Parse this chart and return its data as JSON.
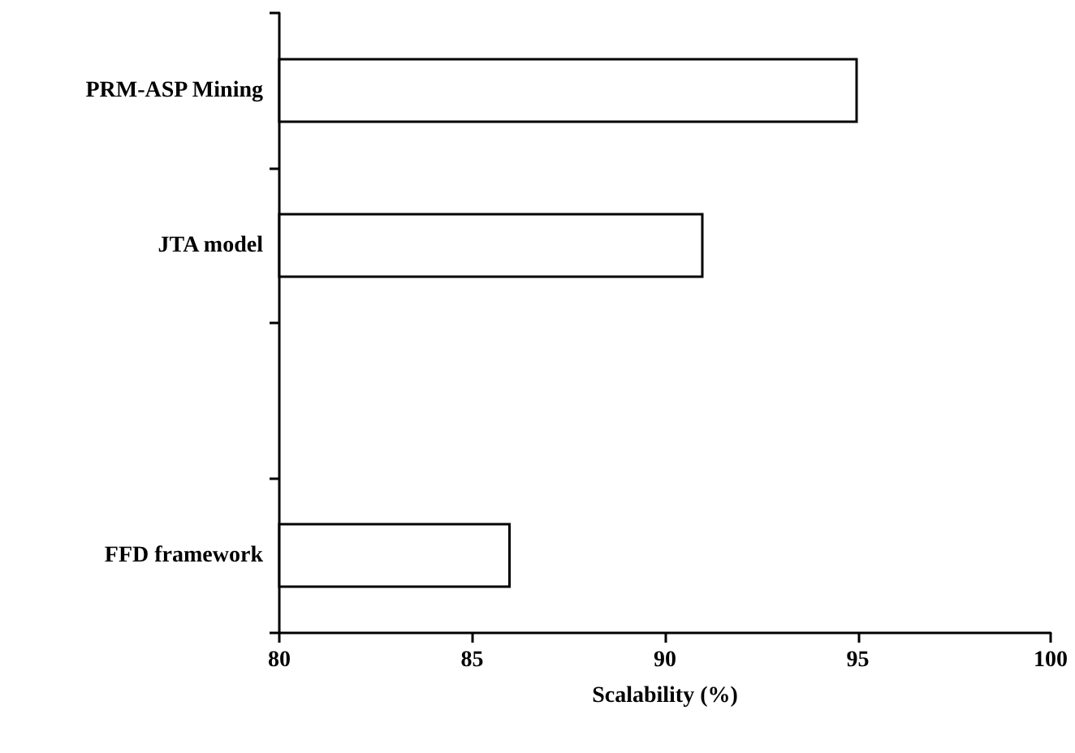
{
  "chart_data": {
    "type": "bar",
    "orientation": "horizontal",
    "categories": [
      "PRM-ASP Mining",
      "JTA model",
      null,
      "FFD framework"
    ],
    "values": [
      95,
      91,
      null,
      86
    ],
    "color": "#ffffff",
    "xlim": [
      80,
      100
    ],
    "xticks": [
      80,
      85,
      90,
      95,
      100
    ],
    "xlabel": "Scalability (%)",
    "grid": false
  }
}
